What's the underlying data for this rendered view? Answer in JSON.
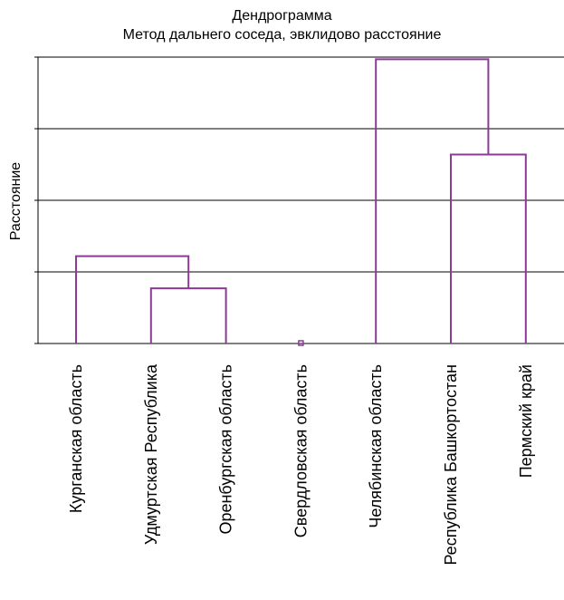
{
  "title": "Дендрограмма",
  "subtitle": "Метод дальнего соседа, эвклидово расстояние",
  "chart_data": {
    "type": "dendrogram",
    "title": "Дендрограмма",
    "subtitle": "Метод дальнего соседа, эвклидово расстояние",
    "ylabel": "Расстояние",
    "xlabel": "",
    "leaves": [
      "Курганская область",
      "Удмуртская Республика",
      "Оренбургская область",
      "Свердловская область",
      "Челябинская область",
      "Республика Башкортостан",
      "Пермский край"
    ],
    "y_ticks": [
      0,
      1,
      2,
      3,
      4
    ],
    "ylim": [
      0,
      4
    ],
    "grid": true,
    "link_color": "#8B3A96",
    "merges": [
      {
        "left": 1,
        "right": 2,
        "height": 0.77
      },
      {
        "left": 0,
        "right": "Удмуртская Республика+Оренбургская область",
        "height": 1.22
      },
      {
        "left": 5,
        "right": 6,
        "height": 2.64
      },
      {
        "left": 4,
        "right": "Республика Башкортостан+Пермский край",
        "height": 3.97
      }
    ],
    "singletons": [
      3
    ]
  }
}
